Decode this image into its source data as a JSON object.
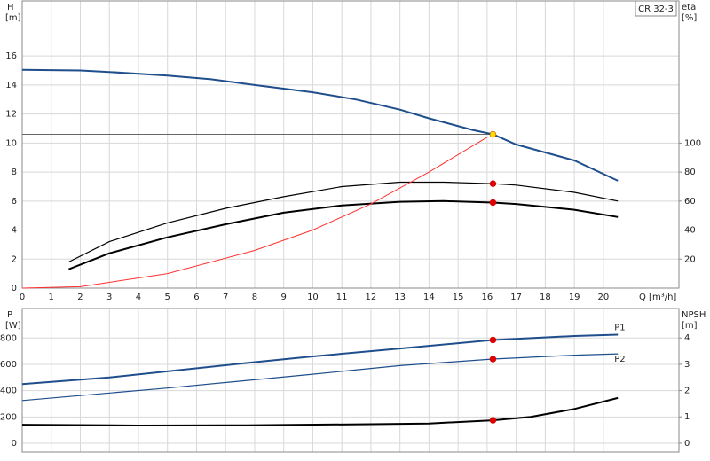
{
  "chart_data": [
    {
      "type": "line",
      "ylabel": "H",
      "yunit": "[m]",
      "y2label": "eta",
      "y2unit": "[%]",
      "xlabel": "Q [m³/h]",
      "badge": "CR 32-3",
      "xlim": [
        0,
        22.6
      ],
      "xticks": [
        0,
        1,
        2,
        3,
        4,
        5,
        6,
        7,
        8,
        9,
        10,
        11,
        12,
        13,
        14,
        15,
        16,
        17,
        18,
        19,
        20
      ],
      "ylim": [
        0,
        19.8
      ],
      "yticks": [
        0,
        2,
        4,
        6,
        8,
        10,
        12,
        14,
        16
      ],
      "y2lim": [
        0,
        198
      ],
      "y2ticks": [
        20,
        40,
        60,
        80,
        100
      ],
      "grid": true,
      "duty_x": 16.2,
      "series": [
        {
          "color": "#1f4e8c",
          "width": 2,
          "point_color": "#f5e000",
          "x": [
            0,
            2,
            3,
            5,
            6.5,
            8,
            10,
            11.5,
            13,
            14,
            15.5,
            16.2,
            17,
            19,
            20.5
          ],
          "values": [
            15.05,
            15.0,
            14.9,
            14.65,
            14.4,
            14.0,
            13.5,
            13.0,
            12.3,
            11.7,
            10.9,
            10.6,
            9.9,
            8.8,
            7.4
          ]
        },
        {
          "color": "#000000",
          "width": 1.2,
          "axis": "y2",
          "point_color": "#e00000",
          "x": [
            1.6,
            3,
            5,
            7,
            9,
            11,
            13,
            14.5,
            16.2,
            17,
            19,
            20.5
          ],
          "values": [
            18,
            32,
            45,
            55,
            63,
            70,
            73,
            73,
            72,
            71,
            66,
            60
          ]
        },
        {
          "color": "#000000",
          "width": 2,
          "axis": "y2",
          "point_color": "#e00000",
          "x": [
            1.6,
            3,
            5,
            7,
            9,
            11,
            13,
            14.5,
            16.2,
            17,
            19,
            20.5
          ],
          "values": [
            13,
            24,
            35,
            44,
            52,
            57,
            59.5,
            60,
            59,
            58,
            54,
            49
          ]
        },
        {
          "color": "#ff3030",
          "width": 1,
          "x": [
            0,
            2,
            3,
            5,
            8,
            10,
            12,
            14,
            16
          ],
          "values": [
            0,
            0.1,
            0.4,
            1.0,
            2.6,
            4.0,
            5.8,
            8.0,
            10.4
          ]
        }
      ]
    },
    {
      "type": "line",
      "ylabel": "P",
      "yunit": "[W]",
      "y2label": "NPSH",
      "y2unit": "[m]",
      "xlim": [
        0,
        22.6
      ],
      "xticks": [
        0,
        1,
        2,
        3,
        4,
        5,
        6,
        7,
        8,
        9,
        10,
        11,
        12,
        13,
        14,
        15,
        16,
        17,
        18,
        19,
        20
      ],
      "ylim": [
        -67,
        1024
      ],
      "yticks": [
        0,
        200,
        400,
        600,
        800
      ],
      "y2lim": [
        -0.34,
        5.12
      ],
      "y2ticks": [
        0,
        1,
        2,
        3,
        4
      ],
      "grid": true,
      "duty_x": 16.2,
      "series": [
        {
          "name": "P1",
          "color": "#1f4e8c",
          "width": 2,
          "point_color": "#e00000",
          "x": [
            0,
            3,
            7.7,
            10,
            13,
            16.2,
            19,
            20.5
          ],
          "values": [
            450,
            500,
            610,
            660,
            720,
            785,
            815,
            825
          ]
        },
        {
          "name": "P2",
          "color": "#1f4e8c",
          "width": 1.2,
          "point_color": "#e00000",
          "x": [
            0,
            5,
            10,
            13,
            16.2,
            19,
            20.5
          ],
          "values": [
            325,
            420,
            525,
            590,
            640,
            670,
            680
          ]
        },
        {
          "color": "#000000",
          "width": 2,
          "axis": "y2",
          "point_color": "#e00000",
          "x": [
            0,
            4,
            7.7,
            12,
            14,
            16.2,
            17.5,
            19,
            20.5
          ],
          "values": [
            0.7,
            0.67,
            0.68,
            0.72,
            0.75,
            0.87,
            1.0,
            1.3,
            1.72
          ]
        }
      ]
    }
  ]
}
